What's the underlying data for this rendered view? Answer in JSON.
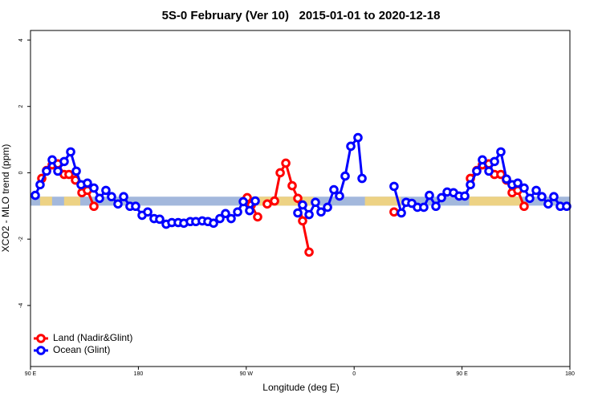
{
  "chart_data": {
    "type": "line",
    "title": "5S-0 February (Ver 10)   2015-01-01 to 2020-12-18",
    "x_label": "Longitude (deg E)",
    "y_label": "XCO2 - MLO trend (ppm)",
    "xlim": [
      90,
      540
    ],
    "xticks": [
      {
        "value": 90,
        "label": "90 E"
      },
      180,
      {
        "value": 270,
        "label": "90 W"
      },
      {
        "value": 360,
        "label": "0"
      },
      {
        "value": 450,
        "label": "90 E"
      },
      {
        "value": 540,
        "label": "180"
      }
    ],
    "ylim": [
      -5.84,
      4.29
    ],
    "yticks": [
      -4,
      -2,
      0,
      2,
      4
    ],
    "legend": "bottom-left",
    "band": {
      "ylim": [
        -0.99,
        -0.72
      ],
      "color": "#a3b8dc",
      "land_color": "#f5d57a",
      "land": [
        [
          98,
          108
        ],
        [
          118,
          131.5
        ],
        [
          265.5,
          325.7
        ],
        [
          369,
          399
        ],
        [
          456,
          500
        ]
      ]
    },
    "series": [
      {
        "name": "Land (Nadir&Glint)",
        "color": "#ff0000",
        "x": [
          99.4,
          103.4,
          108.1,
          112.8,
          118.1,
          122.1,
          127.5,
          132.9,
          137.5,
          142.9,
          null,
          270.8,
          274.2,
          279.5,
          null,
          287.5,
          293.6,
          298.3,
          303.0,
          308.3,
          313.0,
          317.0,
          322.4,
          null,
          393.3,
          null,
          457.0,
          462.3,
          467.0,
          472.4,
          477.1,
          482.4,
          487.1,
          491.8,
          496.5,
          501.8
        ],
        "values": [
          -0.17,
          0.07,
          0.24,
          0.27,
          -0.05,
          -0.05,
          -0.22,
          -0.6,
          -0.53,
          -1.01,
          null,
          -0.75,
          -0.97,
          -1.33,
          null,
          -0.94,
          -0.85,
          0.0,
          0.29,
          -0.39,
          -0.77,
          -1.45,
          -2.39,
          null,
          -1.18,
          null,
          -0.17,
          0.07,
          0.24,
          0.27,
          -0.05,
          -0.05,
          -0.22,
          -0.6,
          -0.53,
          -1.01
        ]
      },
      {
        "name": "Ocean (Glint)",
        "color": "#0000ff",
        "x": [
          94.0,
          98.0,
          103.4,
          108.1,
          112.8,
          118.1,
          123.5,
          128.2,
          132.2,
          137.5,
          142.9,
          147.6,
          152.9,
          157.6,
          163.0,
          167.7,
          173.0,
          177.7,
          183.1,
          187.8,
          193.1,
          197.8,
          203.2,
          207.9,
          213.2,
          217.9,
          223.3,
          227.9,
          233.3,
          238.0,
          242.7,
          248.0,
          252.7,
          257.4,
          262.8,
          267.5,
          272.8,
          277.5,
          null,
          313.0,
          317.0,
          322.4,
          327.7,
          332.4,
          337.8,
          343.1,
          347.8,
          352.5,
          357.2,
          363.2,
          366.6,
          null,
          393.3,
          399.4,
          403.4,
          408.1,
          412.8,
          418.1,
          422.8,
          428.2,
          432.9,
          437.6,
          442.9,
          447.6,
          452.3,
          457.0,
          462.3,
          467.0,
          472.4,
          477.1,
          482.4,
          487.1,
          491.8,
          496.5,
          501.8,
          506.5,
          511.9,
          516.6,
          521.9,
          526.6,
          532.0,
          537.3
        ],
        "values": [
          -0.68,
          -0.36,
          0.05,
          0.39,
          0.05,
          0.34,
          0.63,
          0.05,
          -0.36,
          -0.31,
          -0.46,
          -0.77,
          -0.53,
          -0.72,
          -0.94,
          -0.72,
          -1.01,
          -1.01,
          -1.28,
          -1.18,
          -1.38,
          -1.4,
          -1.55,
          -1.5,
          -1.5,
          -1.52,
          -1.47,
          -1.47,
          -1.45,
          -1.47,
          -1.52,
          -1.38,
          -1.23,
          -1.38,
          -1.18,
          -0.87,
          -1.14,
          -0.85,
          null,
          -1.21,
          -0.97,
          -1.26,
          -0.89,
          -1.18,
          -1.04,
          -0.51,
          -0.7,
          -0.1,
          0.8,
          1.06,
          -0.17,
          null,
          -0.41,
          -1.21,
          -0.89,
          -0.92,
          -1.04,
          -1.04,
          -0.68,
          -1.01,
          -0.75,
          -0.58,
          -0.6,
          -0.7,
          -0.7,
          -0.36,
          0.05,
          0.39,
          0.05,
          0.34,
          0.63,
          -0.19,
          -0.36,
          -0.31,
          -0.46,
          -0.77,
          -0.53,
          -0.72,
          -0.94,
          -0.72,
          -1.01,
          -1.01
        ]
      }
    ]
  }
}
